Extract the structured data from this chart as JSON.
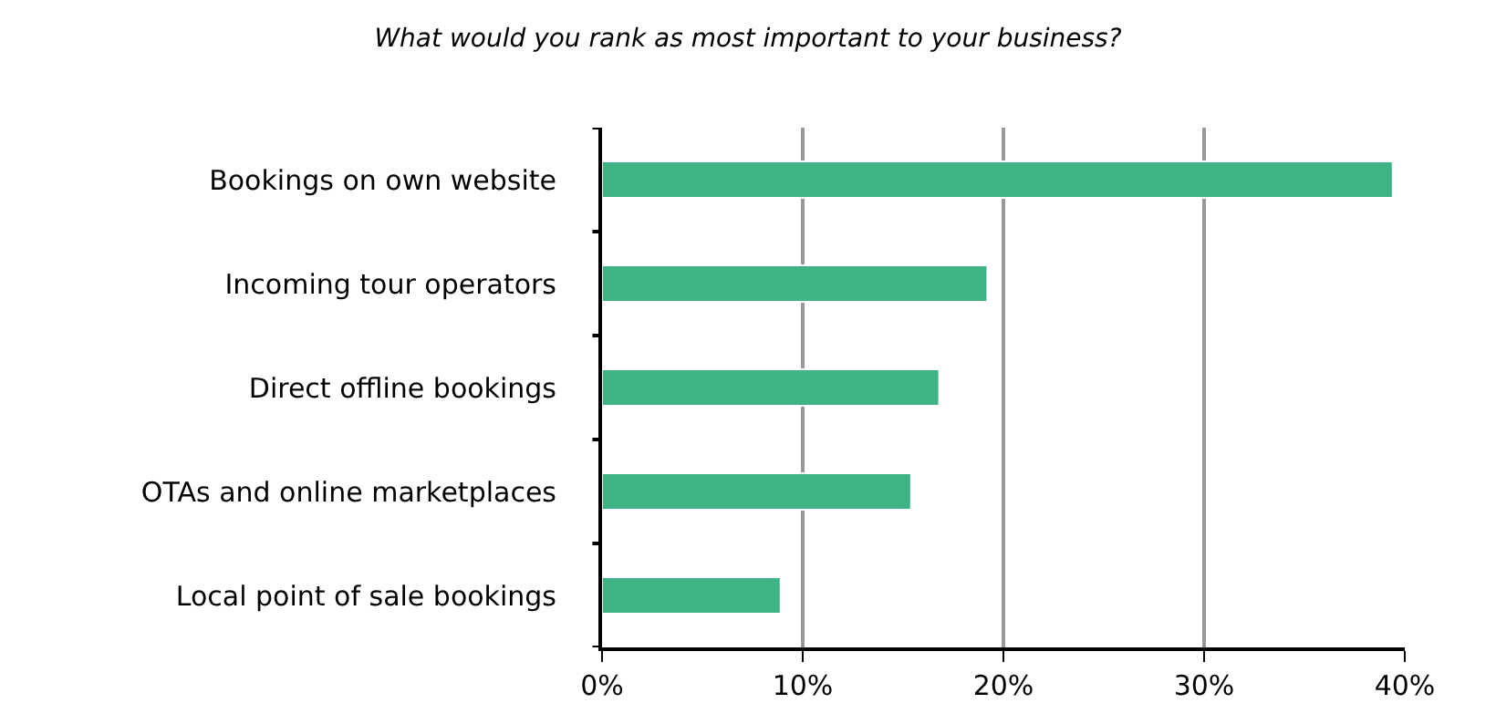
{
  "chart_data": {
    "type": "bar",
    "orientation": "horizontal",
    "title": "What would you rank as most important to your business?",
    "categories": [
      "Bookings on own website",
      "Incoming tour operators",
      "Direct offline bookings",
      "OTAs and online marketplaces",
      "Local point of sale bookings"
    ],
    "values": [
      39.4,
      19.2,
      16.8,
      15.4,
      8.9
    ],
    "color": "#3eb383",
    "xlim": [
      0,
      40
    ],
    "xticks": [
      {
        "value": 0,
        "label": "0%"
      },
      {
        "value": 10,
        "label": "10%"
      },
      {
        "value": 20,
        "label": "20%"
      },
      {
        "value": 30,
        "label": "30%"
      },
      {
        "value": 40,
        "label": "40%"
      }
    ],
    "grid": "x",
    "legend": false
  }
}
